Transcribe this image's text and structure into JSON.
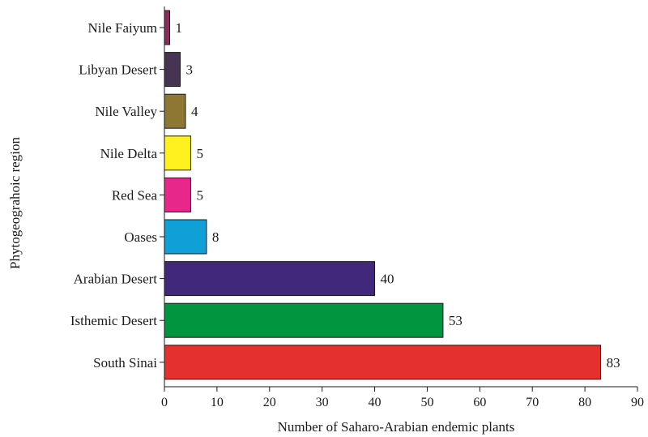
{
  "chart_data": {
    "type": "bar",
    "orientation": "horizontal",
    "categories": [
      "Nile Faiyum",
      "Libyan Desert",
      "Nile Valley",
      "Nile Delta",
      "Red Sea",
      "Oases",
      "Arabian Desert",
      "Isthemic Desert",
      "South Sinai"
    ],
    "values": [
      1,
      3,
      4,
      5,
      5,
      8,
      40,
      53,
      83
    ],
    "colors": [
      "#8a2c5a",
      "#463452",
      "#8e7732",
      "#fff11f",
      "#e8278a",
      "#0fa0d8",
      "#42287a",
      "#00953f",
      "#e4312d"
    ],
    "data_labels": [
      "1",
      "3",
      "4",
      "5",
      "5",
      "8",
      "40",
      "53",
      "83"
    ],
    "xlabel": "Number of Saharo-Arabian endemic plants",
    "ylabel": "Phytogeograhoic region",
    "xlim": [
      0,
      90
    ],
    "xticks": [
      0,
      10,
      20,
      30,
      40,
      50,
      60,
      70,
      80,
      90
    ],
    "xtick_labels": [
      "0",
      "10",
      "20",
      "30",
      "40",
      "50",
      "60",
      "70",
      "80",
      "90"
    ],
    "grid": false,
    "legend": "none"
  }
}
